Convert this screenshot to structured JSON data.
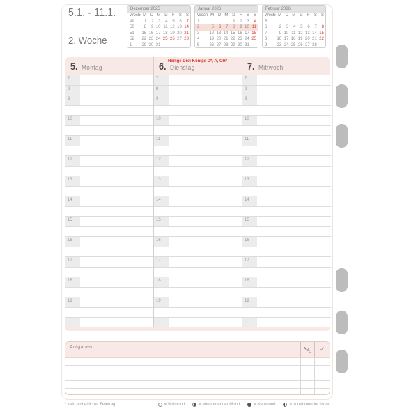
{
  "header": {
    "date_range": "5.1. - 11.1.",
    "week_label": "2. Woche"
  },
  "mini_calendars": [
    {
      "title": "Dezember 2025",
      "col_headers": [
        "Woche",
        "M",
        "D",
        "M",
        "D",
        "F",
        "S",
        "S"
      ],
      "rows": [
        {
          "week": "49",
          "days": [
            "1",
            "2",
            "3",
            "4",
            "5",
            "6",
            "7"
          ],
          "red": [
            "7"
          ],
          "highlight": false
        },
        {
          "week": "50",
          "days": [
            "8",
            "9",
            "10",
            "11",
            "12",
            "13",
            "14"
          ],
          "red": [
            "14"
          ],
          "highlight": false
        },
        {
          "week": "51",
          "days": [
            "15",
            "16",
            "17",
            "18",
            "19",
            "20",
            "21"
          ],
          "red": [
            "21"
          ],
          "highlight": false
        },
        {
          "week": "52",
          "days": [
            "22",
            "23",
            "24",
            "25",
            "26",
            "27",
            "28"
          ],
          "red": [
            "25",
            "26",
            "28"
          ],
          "highlight": false
        },
        {
          "week": "1",
          "days": [
            "29",
            "30",
            "31",
            "",
            "",
            "",
            ""
          ],
          "red": [],
          "highlight": false
        }
      ]
    },
    {
      "title": "Januar 2026",
      "col_headers": [
        "Woche",
        "M",
        "D",
        "M",
        "D",
        "F",
        "S",
        "S"
      ],
      "rows": [
        {
          "week": "1",
          "days": [
            "",
            "",
            "",
            "1",
            "2",
            "3",
            "4"
          ],
          "red": [
            "1",
            "4"
          ],
          "highlight": false
        },
        {
          "week": "2",
          "days": [
            "5",
            "6",
            "7",
            "8",
            "9",
            "10",
            "11"
          ],
          "red": [
            "6",
            "11"
          ],
          "highlight": true
        },
        {
          "week": "3",
          "days": [
            "12",
            "13",
            "14",
            "15",
            "16",
            "17",
            "18"
          ],
          "red": [
            "18"
          ],
          "highlight": false
        },
        {
          "week": "4",
          "days": [
            "19",
            "20",
            "21",
            "22",
            "23",
            "24",
            "25"
          ],
          "red": [
            "25"
          ],
          "highlight": false
        },
        {
          "week": "5",
          "days": [
            "26",
            "27",
            "28",
            "29",
            "30",
            "31",
            ""
          ],
          "red": [],
          "highlight": false
        }
      ]
    },
    {
      "title": "Februar 2026",
      "col_headers": [
        "Woche",
        "M",
        "D",
        "M",
        "D",
        "F",
        "S",
        "S"
      ],
      "rows": [
        {
          "week": "5",
          "days": [
            "",
            "",
            "",
            "",
            "",
            "",
            "1"
          ],
          "red": [
            "1"
          ],
          "highlight": false
        },
        {
          "week": "6",
          "days": [
            "2",
            "3",
            "4",
            "5",
            "6",
            "7",
            "8"
          ],
          "red": [
            "8"
          ],
          "highlight": false
        },
        {
          "week": "7",
          "days": [
            "9",
            "10",
            "11",
            "12",
            "13",
            "14",
            "15"
          ],
          "red": [
            "15"
          ],
          "highlight": false
        },
        {
          "week": "8",
          "days": [
            "16",
            "17",
            "18",
            "19",
            "20",
            "21",
            "22"
          ],
          "red": [
            "22"
          ],
          "highlight": false
        },
        {
          "week": "9",
          "days": [
            "23",
            "24",
            "25",
            "26",
            "27",
            "28",
            ""
          ],
          "red": [],
          "highlight": false
        }
      ]
    }
  ],
  "week_grid": {
    "days": [
      {
        "number": "5.",
        "name": "Montag",
        "holiday": ""
      },
      {
        "number": "6.",
        "name": "Dienstag",
        "holiday": "Heilige Drei Könige D*, A, CH*"
      },
      {
        "number": "7.",
        "name": "Mittwoch",
        "holiday": ""
      }
    ],
    "hours": [
      "7",
      "8",
      "9",
      "10",
      "11",
      "12",
      "13",
      "14",
      "15",
      "16",
      "17",
      "18",
      "19"
    ]
  },
  "tasks": {
    "title": "Aufgaben",
    "priority": {
      "a": "A",
      "b": "B",
      "c": "C"
    },
    "check_symbol": "✓",
    "empty_rows": 5
  },
  "footer": {
    "note": "* kein einheitlicher Feiertag",
    "moon_legend": [
      {
        "type": "full-moon-icon",
        "label": "= Vollmond"
      },
      {
        "type": "waning-moon-icon",
        "label": "= abnehmender Mond"
      },
      {
        "type": "new-moon-icon",
        "label": "= Neumond"
      },
      {
        "type": "waxing-moon-icon",
        "label": "= zunehmender Mond"
      }
    ]
  },
  "colors": {
    "accent_red": "#d2402e",
    "band_pink": "#f9e9e6",
    "highlight_pink": "#f8ded9",
    "tab_gray": "#bcbcbc"
  }
}
